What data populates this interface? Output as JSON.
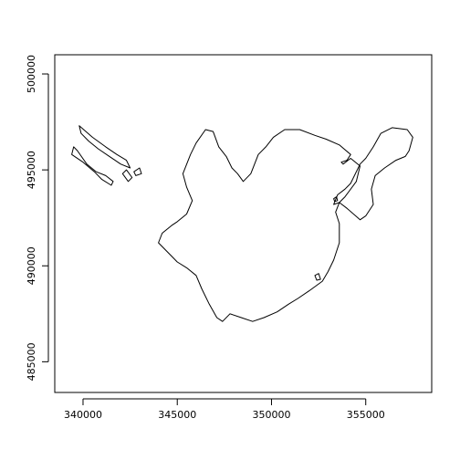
{
  "chart_data": {
    "type": "map",
    "title": "",
    "xlabel": "",
    "ylabel": "",
    "xlim": [
      338500,
      358500
    ],
    "ylim": [
      483400,
      501000
    ],
    "x_ticks": [
      340000,
      345000,
      350000,
      355000
    ],
    "x_tick_labels": [
      "340000",
      "345000",
      "350000",
      "355000"
    ],
    "y_ticks": [
      485000,
      490000,
      495000,
      500000
    ],
    "y_tick_labels": [
      "485000",
      "490000",
      "495000",
      "500000"
    ],
    "grid": false,
    "legend": "none",
    "stroke_color": "#000000",
    "polygons": [
      {
        "id": "main-area",
        "points": [
          [
            344200,
            491700
          ],
          [
            344700,
            492100
          ],
          [
            345000,
            492300
          ],
          [
            345500,
            492700
          ],
          [
            345800,
            493400
          ],
          [
            345500,
            494100
          ],
          [
            345300,
            494800
          ],
          [
            345700,
            495800
          ],
          [
            346000,
            496400
          ],
          [
            346500,
            497100
          ],
          [
            346900,
            497000
          ],
          [
            347200,
            496200
          ],
          [
            347600,
            495700
          ],
          [
            347900,
            495100
          ],
          [
            348200,
            494800
          ],
          [
            348500,
            494400
          ],
          [
            348900,
            494800
          ],
          [
            349300,
            495800
          ],
          [
            349700,
            496200
          ],
          [
            350100,
            496700
          ],
          [
            350700,
            497100
          ],
          [
            351500,
            497100
          ],
          [
            352300,
            496800
          ],
          [
            352900,
            496600
          ],
          [
            353600,
            496300
          ],
          [
            354200,
            495800
          ],
          [
            354000,
            495500
          ],
          [
            353700,
            495400
          ],
          [
            353800,
            495300
          ],
          [
            354200,
            495600
          ],
          [
            354700,
            495200
          ],
          [
            354500,
            494400
          ],
          [
            353900,
            493600
          ],
          [
            353600,
            493300
          ],
          [
            353400,
            492800
          ],
          [
            353600,
            492200
          ],
          [
            353600,
            491200
          ],
          [
            353300,
            490300
          ],
          [
            353000,
            489700
          ],
          [
            352700,
            489200
          ],
          [
            352000,
            488700
          ],
          [
            351400,
            488300
          ],
          [
            350900,
            488000
          ],
          [
            350300,
            487600
          ],
          [
            349600,
            487300
          ],
          [
            349000,
            487100
          ],
          [
            348400,
            487300
          ],
          [
            347800,
            487500
          ],
          [
            347400,
            487100
          ],
          [
            347100,
            487300
          ],
          [
            346700,
            488000
          ],
          [
            346300,
            488800
          ],
          [
            346000,
            489500
          ],
          [
            345500,
            489900
          ],
          [
            345000,
            490200
          ],
          [
            344600,
            490600
          ],
          [
            344000,
            491200
          ],
          [
            344200,
            491700
          ]
        ]
      },
      {
        "id": "east-lobe",
        "points": [
          [
            353300,
            493200
          ],
          [
            353500,
            493700
          ],
          [
            353900,
            494000
          ],
          [
            354200,
            494300
          ],
          [
            354700,
            495300
          ],
          [
            355000,
            495600
          ],
          [
            355400,
            496200
          ],
          [
            355800,
            496900
          ],
          [
            356400,
            497200
          ],
          [
            357200,
            497100
          ],
          [
            357500,
            496700
          ],
          [
            357300,
            496000
          ],
          [
            357100,
            495700
          ],
          [
            356600,
            495500
          ],
          [
            356000,
            495100
          ],
          [
            355500,
            494700
          ],
          [
            355300,
            494000
          ],
          [
            355400,
            493200
          ],
          [
            355000,
            492600
          ],
          [
            354700,
            492400
          ],
          [
            354000,
            493000
          ],
          [
            353600,
            493300
          ],
          [
            353300,
            493200
          ]
        ]
      },
      {
        "id": "west-island-large",
        "points": [
          [
            339700,
            496000
          ],
          [
            340200,
            495300
          ],
          [
            340700,
            494900
          ],
          [
            341200,
            494700
          ],
          [
            341600,
            494400
          ],
          [
            341500,
            494200
          ],
          [
            341000,
            494500
          ],
          [
            340600,
            494900
          ],
          [
            340000,
            495400
          ],
          [
            339400,
            495800
          ],
          [
            339500,
            496200
          ],
          [
            339700,
            496000
          ]
        ]
      },
      {
        "id": "west-island-north",
        "points": [
          [
            339800,
            497300
          ],
          [
            340500,
            496700
          ],
          [
            341200,
            496200
          ],
          [
            341800,
            495800
          ],
          [
            342300,
            495500
          ],
          [
            342500,
            495100
          ],
          [
            342000,
            495300
          ],
          [
            341400,
            495700
          ],
          [
            340800,
            496100
          ],
          [
            340300,
            496500
          ],
          [
            339900,
            496900
          ],
          [
            339800,
            497300
          ]
        ]
      },
      {
        "id": "west-islet-1",
        "points": [
          [
            342100,
            494800
          ],
          [
            342300,
            495000
          ],
          [
            342600,
            494600
          ],
          [
            342400,
            494400
          ],
          [
            342100,
            494800
          ]
        ]
      },
      {
        "id": "west-islet-2",
        "points": [
          [
            342700,
            494900
          ],
          [
            343000,
            495100
          ],
          [
            343100,
            494800
          ],
          [
            342800,
            494700
          ],
          [
            342700,
            494900
          ]
        ]
      },
      {
        "id": "inner-hole-1",
        "points": [
          [
            353300,
            493500
          ],
          [
            353450,
            493600
          ],
          [
            353500,
            493400
          ],
          [
            353350,
            493350
          ],
          [
            353300,
            493500
          ]
        ]
      },
      {
        "id": "inner-hole-2",
        "points": [
          [
            352300,
            489500
          ],
          [
            352500,
            489600
          ],
          [
            352600,
            489300
          ],
          [
            352400,
            489250
          ],
          [
            352300,
            489500
          ]
        ]
      }
    ]
  }
}
